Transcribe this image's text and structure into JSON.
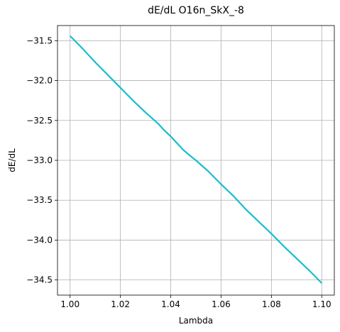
{
  "chart_data": {
    "type": "line",
    "title": "dE/dL O16n_SkX_-8",
    "xlabel": "Lambda",
    "ylabel": "dE/dL",
    "xlim": [
      0.995,
      1.105
    ],
    "ylim": [
      -34.69,
      -31.31
    ],
    "xticks": [
      1.0,
      1.02,
      1.04,
      1.06,
      1.08,
      1.1
    ],
    "xtick_labels": [
      "1.00",
      "1.02",
      "1.04",
      "1.06",
      "1.08",
      "1.10"
    ],
    "yticks": [
      -31.5,
      -32.0,
      -32.5,
      -33.0,
      -33.5,
      -34.0,
      -34.5
    ],
    "ytick_labels": [
      "−31.5",
      "−32.0",
      "−32.5",
      "−33.0",
      "−33.5",
      "−34.0",
      "−34.5"
    ],
    "grid": true,
    "series": [
      {
        "color": "#17becf",
        "x": [
          1.0,
          1.005,
          1.01,
          1.015,
          1.02,
          1.025,
          1.03,
          1.035,
          1.037,
          1.04,
          1.045,
          1.048,
          1.05,
          1.055,
          1.06,
          1.065,
          1.07,
          1.075,
          1.08,
          1.085,
          1.09,
          1.095,
          1.1
        ],
        "y": [
          -31.44,
          -31.6,
          -31.77,
          -31.93,
          -32.09,
          -32.25,
          -32.4,
          -32.54,
          -32.61,
          -32.7,
          -32.87,
          -32.95,
          -33.0,
          -33.14,
          -33.3,
          -33.45,
          -33.62,
          -33.77,
          -33.92,
          -34.08,
          -34.23,
          -34.38,
          -34.54
        ]
      }
    ]
  }
}
